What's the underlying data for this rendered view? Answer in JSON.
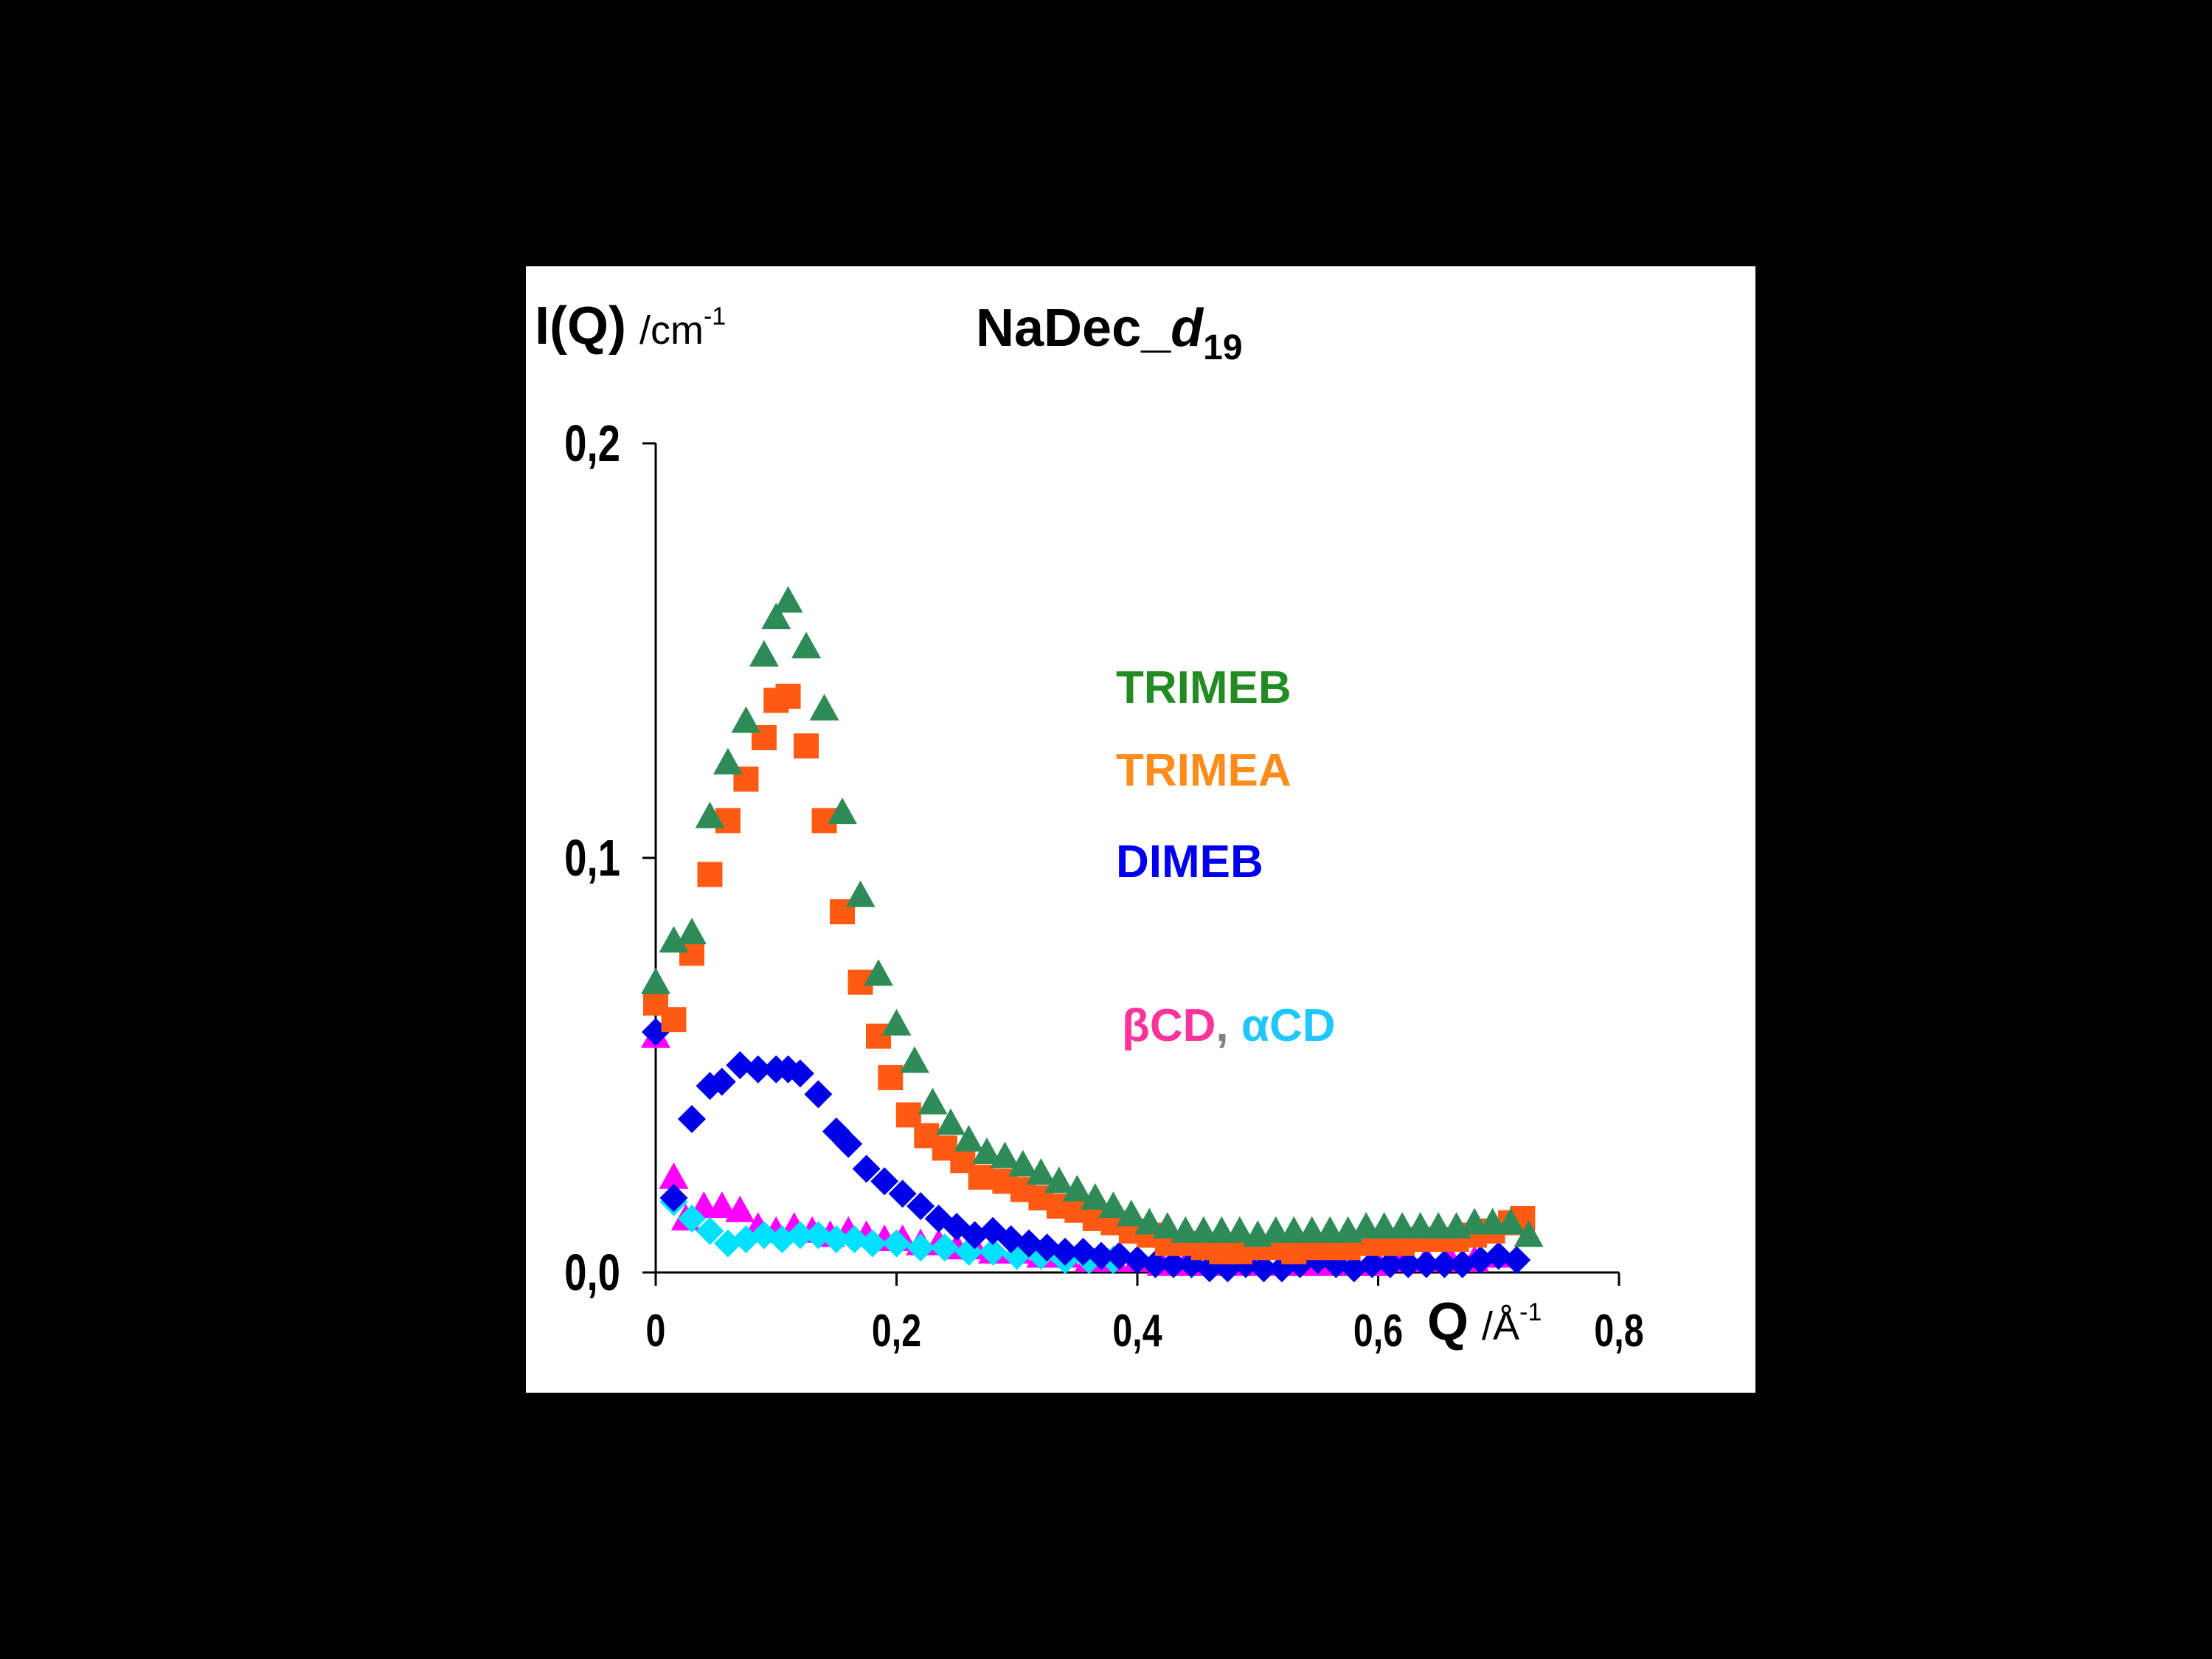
{
  "chart_data": {
    "type": "scatter",
    "title": "NaDec_",
    "title_italic": "d",
    "title_sub": "19",
    "ylabel": "I(Q)",
    "ylabel_unit": "/cm",
    "ylabel_unit_sup": "-1",
    "xlabel": "Q",
    "xlabel_unit": "/Å",
    "xlabel_unit_sup": "-1",
    "xlim": [
      0,
      0.8
    ],
    "ylim": [
      0,
      0.2
    ],
    "x_ticks": [
      "0",
      "0,2",
      "0,4",
      "0,6",
      "0,8"
    ],
    "x_tick_values": [
      0,
      0.2,
      0.4,
      0.6,
      0.8
    ],
    "y_ticks": [
      "0,0",
      "0,1",
      "0,2"
    ],
    "y_tick_values": [
      0,
      0.1,
      0.2
    ],
    "grid": false,
    "legend_labels": {
      "trimeb": "TRIMEB",
      "trimea": "TRIMEA",
      "dimeb": "DIMEB",
      "bcd": "βCD",
      "sep": ", ",
      "acd": "αCD"
    },
    "colors": {
      "trimeb": "#2e8b57",
      "trimea": "#ff5a14",
      "dimeb": "#0000e6",
      "bcd": "#ff00ff",
      "acd": "#00e0ff",
      "trimeb_text": "#228b22",
      "trimea_text": "#ff8c1a",
      "dimeb_text": "#0000ee",
      "bcd_text": "#ff3399",
      "acd_text": "#1ec8ff",
      "sep_text": "#808080"
    },
    "series": [
      {
        "id": "trimeb",
        "marker": "triangle",
        "x": [
          0.0,
          0.015,
          0.03,
          0.045,
          0.06,
          0.075,
          0.09,
          0.1,
          0.11,
          0.125,
          0.14,
          0.155,
          0.17,
          0.185,
          0.2,
          0.215,
          0.23,
          0.245,
          0.26,
          0.275,
          0.29,
          0.305,
          0.32,
          0.335,
          0.35,
          0.365,
          0.38,
          0.395,
          0.41,
          0.425,
          0.44,
          0.455,
          0.47,
          0.485,
          0.5,
          0.515,
          0.53,
          0.545,
          0.56,
          0.575,
          0.59,
          0.605,
          0.62,
          0.635,
          0.65,
          0.665,
          0.68,
          0.695,
          0.71,
          0.725
        ],
        "y": [
          0.07,
          0.08,
          0.082,
          0.11,
          0.123,
          0.133,
          0.149,
          0.158,
          0.162,
          0.151,
          0.136,
          0.111,
          0.091,
          0.072,
          0.06,
          0.051,
          0.041,
          0.036,
          0.032,
          0.029,
          0.028,
          0.026,
          0.024,
          0.022,
          0.02,
          0.018,
          0.016,
          0.014,
          0.012,
          0.011,
          0.01,
          0.01,
          0.01,
          0.01,
          0.009,
          0.01,
          0.01,
          0.01,
          0.01,
          0.01,
          0.011,
          0.011,
          0.011,
          0.011,
          0.011,
          0.011,
          0.012,
          0.012,
          0.012,
          0.009
        ]
      },
      {
        "id": "trimea",
        "marker": "square",
        "x": [
          0.0,
          0.015,
          0.03,
          0.045,
          0.06,
          0.075,
          0.09,
          0.1,
          0.11,
          0.125,
          0.14,
          0.155,
          0.17,
          0.185,
          0.195,
          0.21,
          0.225,
          0.24,
          0.255,
          0.27,
          0.29,
          0.305,
          0.32,
          0.335,
          0.35,
          0.365,
          0.38,
          0.395,
          0.41,
          0.425,
          0.44,
          0.455,
          0.47,
          0.485,
          0.5,
          0.515,
          0.53,
          0.545,
          0.56,
          0.575,
          0.59,
          0.605,
          0.62,
          0.635,
          0.65,
          0.665,
          0.68,
          0.695,
          0.71,
          0.72
        ],
        "y": [
          0.065,
          0.061,
          0.077,
          0.096,
          0.109,
          0.119,
          0.129,
          0.138,
          0.139,
          0.127,
          0.109,
          0.087,
          0.07,
          0.057,
          0.047,
          0.038,
          0.033,
          0.03,
          0.027,
          0.023,
          0.022,
          0.02,
          0.018,
          0.016,
          0.015,
          0.013,
          0.012,
          0.01,
          0.009,
          0.007,
          0.007,
          0.006,
          0.005,
          0.005,
          0.006,
          0.006,
          0.005,
          0.006,
          0.006,
          0.006,
          0.007,
          0.007,
          0.007,
          0.008,
          0.008,
          0.008,
          0.009,
          0.01,
          0.012,
          0.013
        ]
      },
      {
        "id": "dimeb",
        "marker": "diamond",
        "x": [
          0.0,
          0.015,
          0.03,
          0.045,
          0.055,
          0.07,
          0.085,
          0.1,
          0.11,
          0.12,
          0.135,
          0.15,
          0.16,
          0.175,
          0.19,
          0.205,
          0.22,
          0.235,
          0.25,
          0.265,
          0.28,
          0.295,
          0.31,
          0.325,
          0.34,
          0.355,
          0.37,
          0.385,
          0.4,
          0.415,
          0.43,
          0.445,
          0.46,
          0.475,
          0.49,
          0.505,
          0.52,
          0.535,
          0.55,
          0.565,
          0.58,
          0.595,
          0.61,
          0.625,
          0.64,
          0.655,
          0.67,
          0.685,
          0.7,
          0.715
        ],
        "y": [
          0.058,
          0.018,
          0.037,
          0.045,
          0.046,
          0.05,
          0.049,
          0.049,
          0.049,
          0.048,
          0.043,
          0.034,
          0.031,
          0.025,
          0.022,
          0.019,
          0.016,
          0.013,
          0.011,
          0.009,
          0.01,
          0.008,
          0.007,
          0.006,
          0.005,
          0.005,
          0.004,
          0.004,
          0.003,
          0.002,
          0.002,
          0.002,
          0.001,
          0.001,
          0.002,
          0.001,
          0.001,
          0.002,
          0.003,
          0.002,
          0.001,
          0.002,
          0.002,
          0.002,
          0.002,
          0.002,
          0.002,
          0.003,
          0.004,
          0.003
        ]
      },
      {
        "id": "bcd",
        "marker": "triangle",
        "x": [
          0.0,
          0.015,
          0.025,
          0.04,
          0.055,
          0.07,
          0.085,
          0.1,
          0.115,
          0.13,
          0.145,
          0.16,
          0.175,
          0.19,
          0.205,
          0.22,
          0.235,
          0.25,
          0.265,
          0.28,
          0.3,
          0.32,
          0.34,
          0.36,
          0.38,
          0.4,
          0.42,
          0.44,
          0.46,
          0.48,
          0.5,
          0.52,
          0.54,
          0.56,
          0.58,
          0.6,
          0.62,
          0.64,
          0.66,
          0.68,
          0.7
        ],
        "y": [
          0.057,
          0.023,
          0.013,
          0.016,
          0.016,
          0.015,
          0.011,
          0.01,
          0.011,
          0.01,
          0.009,
          0.01,
          0.009,
          0.008,
          0.008,
          0.007,
          0.007,
          0.006,
          0.006,
          0.005,
          0.005,
          0.004,
          0.004,
          0.003,
          0.003,
          0.003,
          0.002,
          0.002,
          0.002,
          0.002,
          0.002,
          0.002,
          0.002,
          0.002,
          0.002,
          0.002,
          0.003,
          0.003,
          0.003,
          0.003,
          0.004
        ]
      },
      {
        "id": "acd",
        "marker": "diamond",
        "x": [
          0.015,
          0.03,
          0.045,
          0.06,
          0.075,
          0.09,
          0.105,
          0.12,
          0.135,
          0.15,
          0.165,
          0.18,
          0.2,
          0.22,
          0.24,
          0.26,
          0.28,
          0.3,
          0.32,
          0.34,
          0.36,
          0.38
        ],
        "y": [
          0.017,
          0.013,
          0.01,
          0.007,
          0.008,
          0.009,
          0.008,
          0.009,
          0.009,
          0.008,
          0.008,
          0.007,
          0.007,
          0.006,
          0.006,
          0.005,
          0.005,
          0.004,
          0.004,
          0.003,
          0.003,
          0.003
        ]
      }
    ]
  }
}
